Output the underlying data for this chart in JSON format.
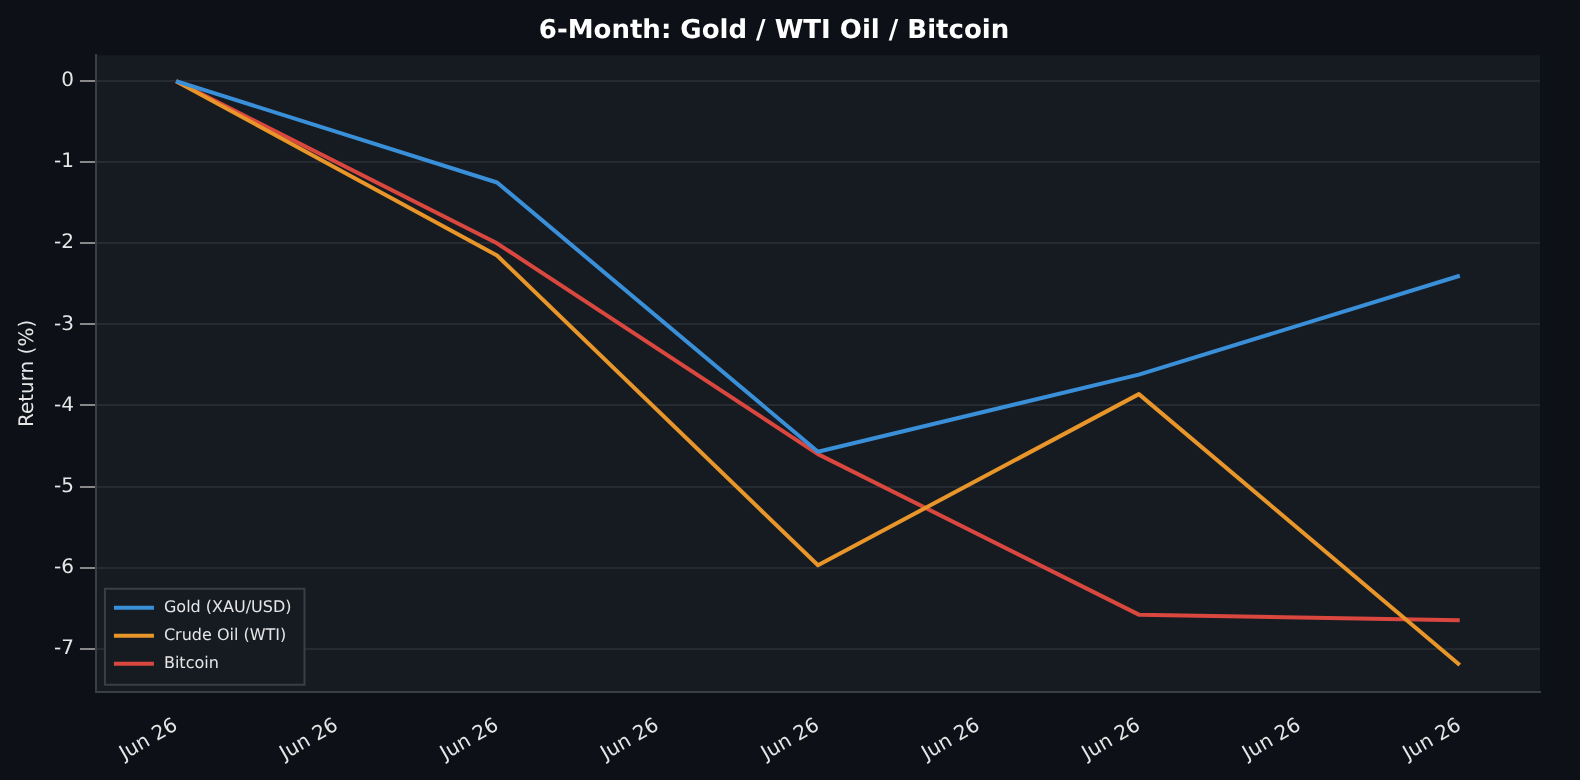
{
  "chart_data": {
    "type": "line",
    "title": "6-Month: Gold / WTI Oil / Bitcoin",
    "ylabel": "Return (%)",
    "categories": [
      "Jun 26",
      "Jun 26",
      "Jun 26",
      "Jun 26",
      "Jun 26",
      "Jun 26",
      "Jun 26",
      "Jun 26",
      "Jun 26"
    ],
    "ylim": [
      -7.53,
      0.32
    ],
    "yticks": [
      -7,
      -6,
      -5,
      -4,
      -3,
      -2,
      -1,
      0
    ],
    "series": [
      {
        "name": "Gold (XAU/USD)",
        "color": "#3a8fd9",
        "values": [
          0,
          null,
          -1.25,
          null,
          -4.57,
          null,
          -3.62,
          null,
          -2.4
        ]
      },
      {
        "name": "Crude Oil (WTI)",
        "color": "#e8952a",
        "values": [
          0,
          null,
          -2.15,
          null,
          -5.97,
          null,
          -3.86,
          null,
          -7.2
        ]
      },
      {
        "name": "Bitcoin",
        "color": "#d9473f",
        "values": [
          0,
          null,
          -2.0,
          null,
          -4.6,
          null,
          -6.58,
          null,
          -6.65
        ]
      }
    ],
    "grid": "y",
    "legend": "bottom left",
    "marker": "none",
    "line_style": "solid"
  }
}
